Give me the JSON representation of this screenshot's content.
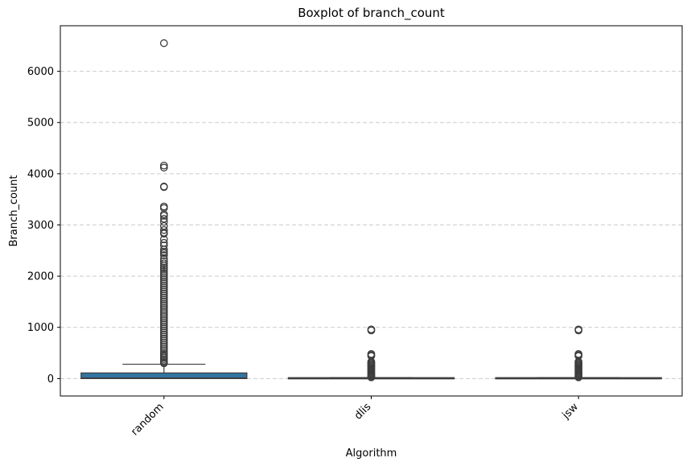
{
  "chart_data": {
    "type": "box",
    "title": "Boxplot of branch_count",
    "xlabel": "Algorithm",
    "ylabel": "Branch_count",
    "categories": [
      "random",
      "dlis",
      "jsw"
    ],
    "yticks": [
      0,
      1000,
      2000,
      3000,
      4000,
      5000,
      6000
    ],
    "ylim": [
      -340,
      6890
    ],
    "grid": true,
    "colors": {
      "box": "#3274a1",
      "lines": "#3d3d3d",
      "grid": "#cccccc"
    },
    "boxes": [
      {
        "name": "random",
        "q1": 0,
        "median": 10,
        "q3": 110,
        "whisker_low": 0,
        "whisker_high": 280,
        "outliers": [
          6550,
          4160,
          4120,
          3750,
          3740,
          3360,
          3330,
          3210,
          3180,
          3120,
          3060,
          2980,
          2900,
          2850,
          2830,
          2720,
          2650,
          2600,
          2520,
          2480,
          2450,
          2410,
          2340,
          2290,
          2250,
          2210,
          2170,
          2140,
          2100,
          2060,
          2020,
          1980,
          1940,
          1900,
          1860,
          1820,
          1780,
          1740,
          1700,
          1660,
          1620,
          1580,
          1540,
          1500,
          1460,
          1420,
          1380,
          1340,
          1300,
          1260,
          1220,
          1180,
          1140,
          1100,
          1060,
          1020,
          980,
          940,
          900,
          860,
          820,
          780,
          740,
          700,
          660,
          620,
          580,
          540,
          500,
          470,
          440,
          410,
          380,
          350,
          320,
          300
        ]
      },
      {
        "name": "dlis",
        "q1": 0,
        "median": 2,
        "q3": 18,
        "whisker_low": 0,
        "whisker_high": 18,
        "outliers": [
          960,
          940,
          480,
          460,
          440,
          330,
          310,
          290,
          270,
          250,
          230,
          210,
          190,
          170,
          150,
          130,
          110,
          90,
          70,
          50,
          35,
          25
        ]
      },
      {
        "name": "jsw",
        "q1": 0,
        "median": 2,
        "q3": 18,
        "whisker_low": 0,
        "whisker_high": 18,
        "outliers": [
          960,
          940,
          480,
          460,
          440,
          330,
          310,
          290,
          270,
          250,
          230,
          210,
          190,
          170,
          150,
          130,
          110,
          90,
          70,
          50,
          35,
          25
        ]
      }
    ]
  }
}
